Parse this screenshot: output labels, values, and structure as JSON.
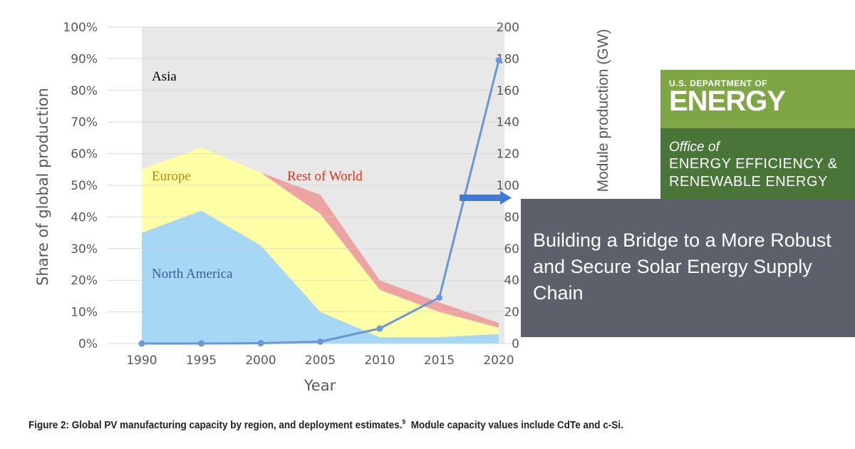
{
  "chart_data": {
    "type": "area",
    "stacked": true,
    "x": [
      1990,
      1995,
      2000,
      2005,
      2010,
      2015,
      2020
    ],
    "xlabel": "Year",
    "ylabel": "Share of global production",
    "ylim": [
      0,
      100
    ],
    "y_ticks": [
      "0%",
      "10%",
      "20%",
      "30%",
      "40%",
      "50%",
      "60%",
      "70%",
      "80%",
      "90%",
      "100%"
    ],
    "y2label": "Module production (GW)",
    "y2lim": [
      0,
      200
    ],
    "y2_ticks": [
      "0",
      "20",
      "40",
      "60",
      "80",
      "100",
      "120",
      "140",
      "160",
      "180",
      "200"
    ],
    "grid": true,
    "series": [
      {
        "name": "North America",
        "values": [
          35,
          42,
          31,
          10,
          2,
          2,
          3
        ],
        "color": "#a6d8f5",
        "label_color": "#3b5c9c"
      },
      {
        "name": "Europe",
        "values": [
          20,
          20,
          23,
          31,
          15,
          8,
          2
        ],
        "color": "#ffffa6",
        "label_color": "#b88a14"
      },
      {
        "name": "Rest of World",
        "values": [
          0,
          0,
          0,
          6,
          3,
          3,
          1.5
        ],
        "color": "#eea3a3",
        "label_color": "#e0301e"
      },
      {
        "name": "Asia",
        "values": [
          45,
          38,
          46,
          53,
          80,
          87,
          93.5
        ],
        "color": "#e8e8e8",
        "label_color": "#000000"
      }
    ],
    "line_series": {
      "axis": "right",
      "values": [
        0,
        0,
        0.2,
        1.2,
        9.5,
        29,
        179
      ],
      "color": "#6a97d8"
    },
    "arrow_color": "#3d7ad6"
  },
  "caption": {
    "text": "Figure 2: Global PV manufacturing capacity by region, and deployment estimates.",
    "footnote": "9",
    "text2": "  Module capacity values include CdTe and c-Si."
  },
  "logo": {
    "dept": "U.S. DEPARTMENT OF",
    "energy": "ENERGY",
    "office": "Office of",
    "eere_line1": "ENERGY EFFICIENCY &",
    "eere_line2": "RENEWABLE ENERGY",
    "colors": {
      "top": "#7ea644",
      "bottom": "#4a7539"
    }
  },
  "banner": {
    "title_lines": [
      "Building a Bridge to a More Robust",
      "and Secure Solar Energy Supply",
      "Chain"
    ],
    "color": "#5c606b"
  }
}
